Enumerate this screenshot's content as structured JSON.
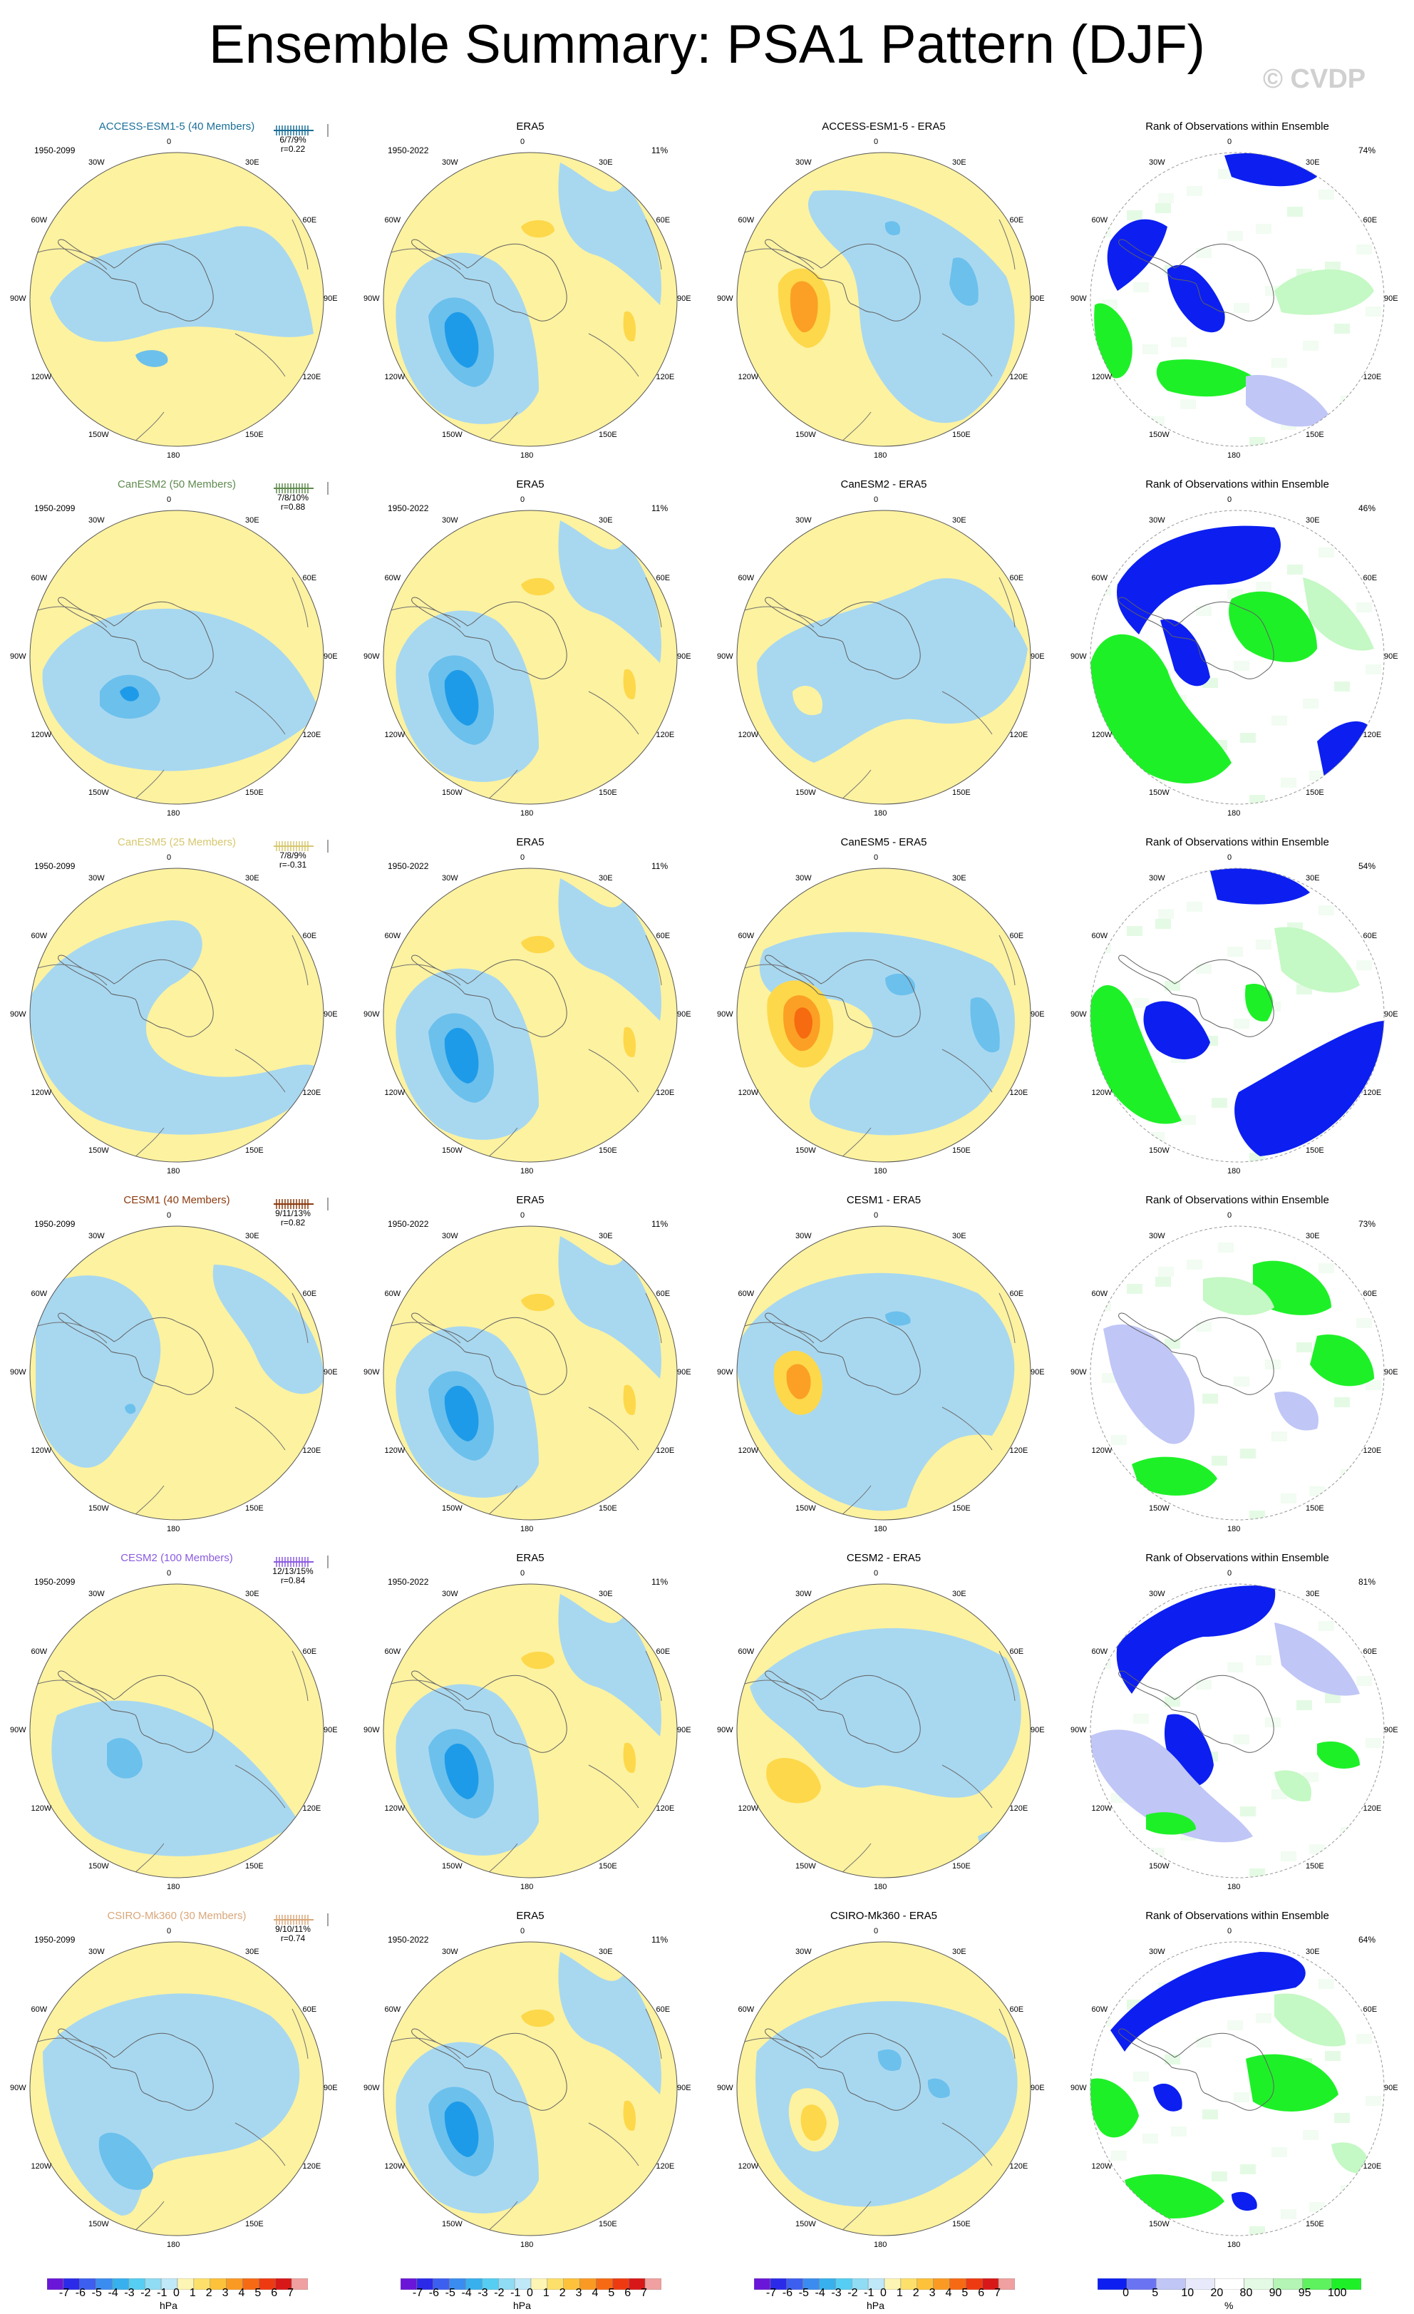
{
  "title": "Ensemble Summary: PSA1 Pattern (DJF)",
  "copyright": "© CVDP",
  "colors": {
    "blue_light": "#a8d8f0",
    "blue_mid": "#6cc0ec",
    "blue_dark": "#1e9be8",
    "yellow_light": "#fdf2a0",
    "yellow_mid": "#fdd84a",
    "orange": "#fba024",
    "orange_dark": "#f66a10",
    "rank_blue": "#0c1ff0",
    "rank_blue_light": "#c0c6f6",
    "rank_green": "#1ef028",
    "rank_green_light": "#c4f8c4"
  },
  "longitude_labels": [
    "0",
    "30E",
    "60E",
    "90E",
    "120E",
    "150E",
    "180",
    "150W",
    "120W",
    "90W",
    "60W",
    "30W"
  ],
  "rows": [
    {
      "model_title": "ACCESS-ESM1-5 (40 Members)",
      "model_color": "#1a6f99",
      "model_period": "1950-2099",
      "stats_pct": "6/7/9%",
      "stats_r": "r=0.22",
      "era_title": "ERA5",
      "era_period": "1950-2022",
      "era_pct": "11%",
      "diff_title": "ACCESS-ESM1-5 - ERA5",
      "rank_title": "Rank of Observations within Ensemble",
      "rank_pct": "74%"
    },
    {
      "model_title": "CanESM2 (50 Members)",
      "model_color": "#5f8a4f",
      "model_period": "1950-2099",
      "stats_pct": "7/8/10%",
      "stats_r": "r=0.88",
      "era_title": "ERA5",
      "era_period": "1950-2022",
      "era_pct": "11%",
      "diff_title": "CanESM2 - ERA5",
      "rank_title": "Rank of Observations within Ensemble",
      "rank_pct": "46%"
    },
    {
      "model_title": "CanESM5 (25 Members)",
      "model_color": "#d6c76f",
      "model_period": "1950-2099",
      "stats_pct": "7/8/9%",
      "stats_r": "r=-0.31",
      "era_title": "ERA5",
      "era_period": "1950-2022",
      "era_pct": "11%",
      "diff_title": "CanESM5 - ERA5",
      "rank_title": "Rank of Observations within Ensemble",
      "rank_pct": "54%"
    },
    {
      "model_title": "CESM1 (40 Members)",
      "model_color": "#8b3a0f",
      "model_period": "1950-2099",
      "stats_pct": "9/11/13%",
      "stats_r": "r=0.82",
      "era_title": "ERA5",
      "era_period": "1950-2022",
      "era_pct": "11%",
      "diff_title": "CESM1 - ERA5",
      "rank_title": "Rank of Observations within Ensemble",
      "rank_pct": "73%"
    },
    {
      "model_title": "CESM2 (100 Members)",
      "model_color": "#8a5be0",
      "model_period": "1950-2099",
      "stats_pct": "12/13/15%",
      "stats_r": "r=0.84",
      "era_title": "ERA5",
      "era_period": "1950-2022",
      "era_pct": "11%",
      "diff_title": "CESM2 - ERA5",
      "rank_title": "Rank of Observations within Ensemble",
      "rank_pct": "81%"
    },
    {
      "model_title": "CSIRO-Mk360 (30 Members)",
      "model_color": "#d9a77a",
      "model_period": "1950-2099",
      "stats_pct": "9/10/11%",
      "stats_r": "r=0.74",
      "era_title": "ERA5",
      "era_period": "1950-2022",
      "era_pct": "11%",
      "diff_title": "CSIRO-Mk360 - ERA5",
      "rank_title": "Rank of Observations within Ensemble",
      "rank_pct": "64%"
    }
  ],
  "colorbar_hpa": {
    "ticks": [
      "-7",
      "-6",
      "-5",
      "-4",
      "-3",
      "-2",
      "-1",
      "0",
      "1",
      "2",
      "3",
      "4",
      "5",
      "6",
      "7"
    ],
    "unit": "hPa",
    "colors": [
      "#6a16d8",
      "#2b2ae8",
      "#3c5ff0",
      "#3b8cf0",
      "#38b0ee",
      "#56cdf2",
      "#8fdcf4",
      "#bfe8f8",
      "#fdf5b4",
      "#fde06a",
      "#fdc23a",
      "#fb9a22",
      "#f76a14",
      "#ee3a10",
      "#d81818",
      "#f0a0a0"
    ]
  },
  "colorbar_rank": {
    "ticks": [
      "0",
      "5",
      "10",
      "20",
      "80",
      "90",
      "95",
      "100"
    ],
    "unit": "%",
    "colors": [
      "#0c1ff0",
      "#6a74f2",
      "#c0c6f6",
      "#e8eafc",
      "#ffffff",
      "#e4fae4",
      "#b4f4b4",
      "#5ef25e",
      "#1ef028"
    ]
  }
}
